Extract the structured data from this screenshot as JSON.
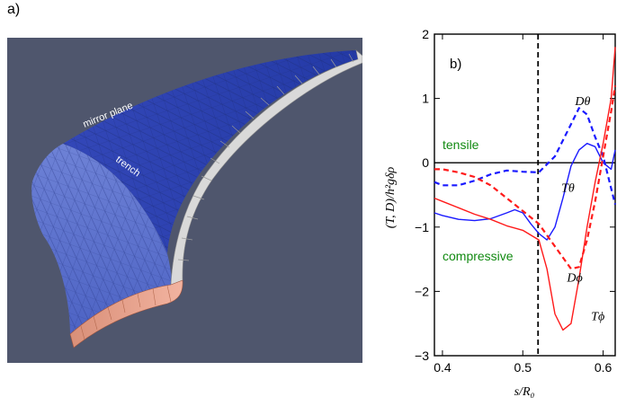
{
  "panel_a": {
    "label": "a)",
    "mesh_labels": [
      "mirror plane",
      "trench"
    ]
  },
  "panel_b": {
    "label": "b)",
    "region_labels": {
      "upper": "tensile",
      "lower": "compressive"
    },
    "colors": {
      "theta": "#1a1aff",
      "phi": "#ff1a1a",
      "zero": "#000000",
      "regions": "#118a11"
    }
  },
  "chart_data": {
    "type": "line",
    "title": "",
    "xlabel": "s/R₀",
    "ylabel": "(T, D)/h²gδρ",
    "xlim": [
      0.39,
      0.615
    ],
    "ylim": [
      -3,
      2
    ],
    "xticks": [
      0.4,
      0.5,
      0.6
    ],
    "yticks": [
      -3,
      -2,
      -1,
      0,
      1,
      2
    ],
    "hlines": [
      0
    ],
    "vlines": [
      {
        "x": 0.519,
        "style": "dashed"
      }
    ],
    "series": [
      {
        "name": "Dθ",
        "color": "#1a1aff",
        "style": "dashed",
        "points": [
          [
            0.39,
            -0.3
          ],
          [
            0.4,
            -0.35
          ],
          [
            0.42,
            -0.35
          ],
          [
            0.44,
            -0.28
          ],
          [
            0.46,
            -0.18
          ],
          [
            0.48,
            -0.12
          ],
          [
            0.5,
            -0.14
          ],
          [
            0.52,
            -0.15
          ],
          [
            0.54,
            0.1
          ],
          [
            0.56,
            0.6
          ],
          [
            0.57,
            0.85
          ],
          [
            0.58,
            0.75
          ],
          [
            0.59,
            0.4
          ],
          [
            0.6,
            0.1
          ],
          [
            0.61,
            -0.4
          ],
          [
            0.615,
            -0.65
          ]
        ]
      },
      {
        "name": "Tθ",
        "color": "#1a1aff",
        "style": "solid",
        "points": [
          [
            0.39,
            -0.78
          ],
          [
            0.4,
            -0.82
          ],
          [
            0.42,
            -0.88
          ],
          [
            0.44,
            -0.9
          ],
          [
            0.46,
            -0.87
          ],
          [
            0.48,
            -0.78
          ],
          [
            0.49,
            -0.73
          ],
          [
            0.5,
            -0.78
          ],
          [
            0.51,
            -0.95
          ],
          [
            0.52,
            -1.1
          ],
          [
            0.53,
            -1.2
          ],
          [
            0.54,
            -1.0
          ],
          [
            0.55,
            -0.55
          ],
          [
            0.56,
            -0.05
          ],
          [
            0.57,
            0.2
          ],
          [
            0.58,
            0.3
          ],
          [
            0.59,
            0.25
          ],
          [
            0.6,
            0.0
          ],
          [
            0.61,
            -0.1
          ],
          [
            0.615,
            0.2
          ]
        ]
      },
      {
        "name": "Dϕ",
        "color": "#ff1a1a",
        "style": "dashed",
        "points": [
          [
            0.39,
            -0.1
          ],
          [
            0.4,
            -0.1
          ],
          [
            0.42,
            -0.15
          ],
          [
            0.44,
            -0.22
          ],
          [
            0.46,
            -0.35
          ],
          [
            0.48,
            -0.55
          ],
          [
            0.5,
            -0.75
          ],
          [
            0.52,
            -0.95
          ],
          [
            0.54,
            -1.3
          ],
          [
            0.56,
            -1.65
          ],
          [
            0.57,
            -1.62
          ],
          [
            0.58,
            -1.2
          ],
          [
            0.59,
            -0.6
          ],
          [
            0.6,
            0.1
          ],
          [
            0.61,
            0.8
          ],
          [
            0.615,
            1.2
          ]
        ]
      },
      {
        "name": "Tϕ",
        "color": "#ff1a1a",
        "style": "solid",
        "points": [
          [
            0.39,
            -0.55
          ],
          [
            0.4,
            -0.6
          ],
          [
            0.42,
            -0.7
          ],
          [
            0.44,
            -0.8
          ],
          [
            0.46,
            -0.88
          ],
          [
            0.48,
            -0.98
          ],
          [
            0.5,
            -1.05
          ],
          [
            0.52,
            -1.2
          ],
          [
            0.53,
            -1.65
          ],
          [
            0.54,
            -2.35
          ],
          [
            0.55,
            -2.6
          ],
          [
            0.56,
            -2.5
          ],
          [
            0.57,
            -1.8
          ],
          [
            0.58,
            -1.0
          ],
          [
            0.59,
            -0.3
          ],
          [
            0.6,
            0.3
          ],
          [
            0.61,
            1.0
          ],
          [
            0.615,
            1.8
          ]
        ]
      }
    ],
    "curve_labels": [
      {
        "text": "Dθ",
        "x": 0.565,
        "y": 0.9
      },
      {
        "text": "Tθ",
        "x": 0.548,
        "y": -0.45
      },
      {
        "text": "Dϕ",
        "x": 0.555,
        "y": -1.85
      },
      {
        "text": "Tϕ",
        "x": 0.585,
        "y": -2.45
      }
    ],
    "grid": false
  }
}
